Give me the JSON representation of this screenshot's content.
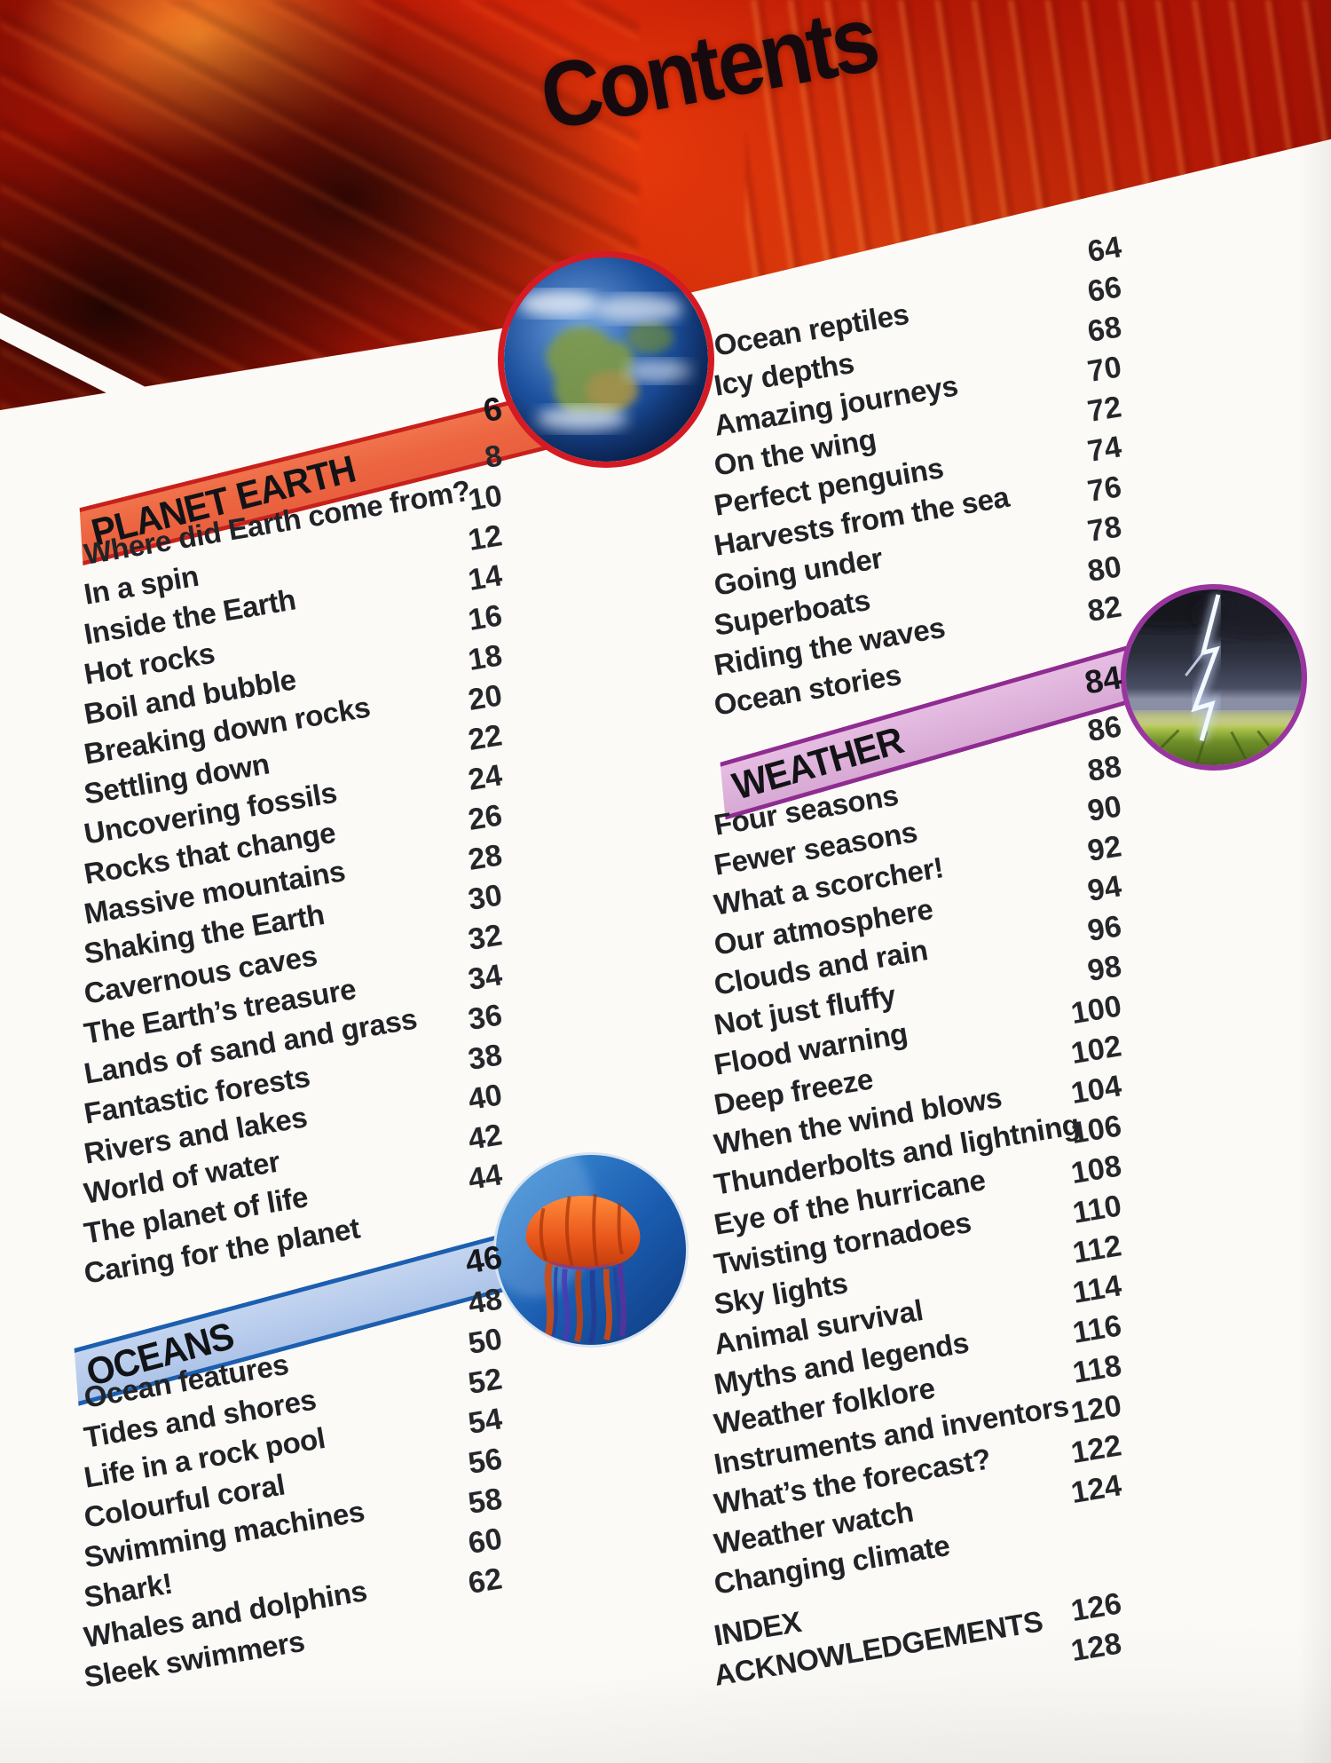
{
  "title": "Contents",
  "colors": {
    "hero_red": "#c81806",
    "planet_earth_banner_fill": "#ec6440",
    "planet_earth_banner_edge": "#c9201a",
    "oceans_banner_fill": "#b6cbec",
    "oceans_banner_edge": "#1c5fb0",
    "weather_banner_fill": "#ddb1da",
    "weather_banner_edge": "#8f2b91",
    "text": "#222327"
  },
  "photos": {
    "earth": "earth-from-space",
    "jellyfish": "orange-jellyfish",
    "lightning": "lightning-storm-over-field"
  },
  "sections": [
    {
      "name": "PLANET EARTH",
      "page": "6",
      "entries": [
        {
          "label": "Where did Earth come from?",
          "page": "8"
        },
        {
          "label": "In a spin",
          "page": "10"
        },
        {
          "label": "Inside the Earth",
          "page": "12"
        },
        {
          "label": "Hot rocks",
          "page": "14"
        },
        {
          "label": "Boil and bubble",
          "page": "16"
        },
        {
          "label": "Breaking down rocks",
          "page": "18"
        },
        {
          "label": "Settling down",
          "page": "20"
        },
        {
          "label": "Uncovering fossils",
          "page": "22"
        },
        {
          "label": "Rocks that change",
          "page": "24"
        },
        {
          "label": "Massive mountains",
          "page": "26"
        },
        {
          "label": "Shaking the Earth",
          "page": "28"
        },
        {
          "label": "Cavernous caves",
          "page": "30"
        },
        {
          "label": "The Earth’s treasure",
          "page": "32"
        },
        {
          "label": "Lands of sand and grass",
          "page": "34"
        },
        {
          "label": "Fantastic forests",
          "page": "36"
        },
        {
          "label": "Rivers and lakes",
          "page": "38"
        },
        {
          "label": "World of water",
          "page": "40"
        },
        {
          "label": "The planet of life",
          "page": "42"
        },
        {
          "label": "Caring for the planet",
          "page": "44"
        }
      ]
    },
    {
      "name": "OCEANS",
      "page": "46",
      "entries": [
        {
          "label": "Ocean features",
          "page": "48"
        },
        {
          "label": "Tides and shores",
          "page": "50"
        },
        {
          "label": "Life in a rock pool",
          "page": "52"
        },
        {
          "label": "Colourful coral",
          "page": "54"
        },
        {
          "label": "Swimming machines",
          "page": "56"
        },
        {
          "label": "Shark!",
          "page": "58"
        },
        {
          "label": "Whales and dolphins",
          "page": "60"
        },
        {
          "label": "Sleek swimmers",
          "page": "62"
        },
        {
          "label": "Ocean reptiles",
          "page": "64"
        },
        {
          "label": "Icy depths",
          "page": "66"
        },
        {
          "label": "Amazing journeys",
          "page": "68"
        },
        {
          "label": "On the wing",
          "page": "70"
        },
        {
          "label": "Perfect penguins",
          "page": "72"
        },
        {
          "label": "Harvests from the sea",
          "page": "74"
        },
        {
          "label": "Going under",
          "page": "76"
        },
        {
          "label": "Superboats",
          "page": "78"
        },
        {
          "label": "Riding the waves",
          "page": "80"
        },
        {
          "label": "Ocean stories",
          "page": "82"
        }
      ]
    },
    {
      "name": "WEATHER",
      "page": "84",
      "entries": [
        {
          "label": "Four seasons",
          "page": "86"
        },
        {
          "label": "Fewer seasons",
          "page": "88"
        },
        {
          "label": "What a scorcher!",
          "page": "90"
        },
        {
          "label": "Our atmosphere",
          "page": "92"
        },
        {
          "label": "Clouds and rain",
          "page": "94"
        },
        {
          "label": "Not just fluffy",
          "page": "96"
        },
        {
          "label": "Flood warning",
          "page": "98"
        },
        {
          "label": "Deep freeze",
          "page": "100"
        },
        {
          "label": "When the wind blows",
          "page": "102"
        },
        {
          "label": "Thunderbolts and lightning",
          "page": "104"
        },
        {
          "label": "Eye of the hurricane",
          "page": "106"
        },
        {
          "label": "Twisting tornadoes",
          "page": "108"
        },
        {
          "label": "Sky lights",
          "page": "110"
        },
        {
          "label": "Animal survival",
          "page": "112"
        },
        {
          "label": "Myths and legends",
          "page": "114"
        },
        {
          "label": "Weather folklore",
          "page": "116"
        },
        {
          "label": "Instruments and inventors",
          "page": "118"
        },
        {
          "label": "What’s the forecast?",
          "page": "120"
        },
        {
          "label": "Weather watch",
          "page": "122"
        },
        {
          "label": "Changing climate",
          "page": "124"
        }
      ]
    }
  ],
  "footer": [
    {
      "label": "INDEX",
      "page": "126"
    },
    {
      "label": "ACKNOWLEDGEMENTS",
      "page": "128"
    }
  ]
}
